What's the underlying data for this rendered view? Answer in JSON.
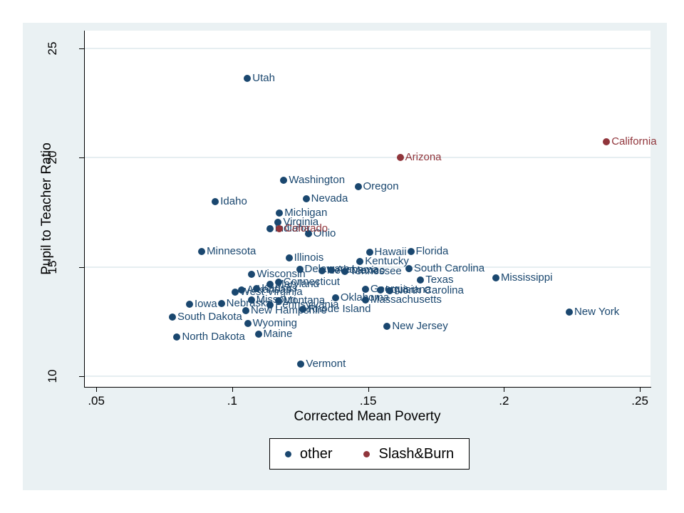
{
  "figure": {
    "canvas_color": "#eaf1f3",
    "plot_color": "#ffffff",
    "gridline_color": "#e6eef1",
    "axis_color": "#000000"
  },
  "chart_data": {
    "type": "scatter",
    "title": "",
    "xlabel": "Corrected Mean Poverty",
    "ylabel": "Pupil to Teacher Ratio",
    "xlim": [
      0.0455,
      0.2539
    ],
    "ylim": [
      9.51,
      25.82
    ],
    "grid": "horizontal",
    "xticks": [
      {
        "value": 0.05,
        "label": ".05"
      },
      {
        "value": 0.1,
        "label": ".1"
      },
      {
        "value": 0.15,
        "label": ".15"
      },
      {
        "value": 0.2,
        "label": ".2"
      },
      {
        "value": 0.25,
        "label": ".25"
      }
    ],
    "yticks": [
      {
        "value": 10,
        "label": "10"
      },
      {
        "value": 15,
        "label": "15"
      },
      {
        "value": 20,
        "label": "20"
      },
      {
        "value": 25,
        "label": "25"
      }
    ],
    "legend": {
      "position": "bottom-center",
      "items": [
        {
          "label": "other",
          "color": "#1a476f"
        },
        {
          "label": "Slash&Burn",
          "color": "#90353b"
        }
      ]
    },
    "series": [
      {
        "name": "other",
        "color": "#1a476f",
        "points": [
          {
            "label": "Utah",
            "x": 0.1056,
            "y": 23.62
          },
          {
            "label": "Washington",
            "x": 0.119,
            "y": 18.97
          },
          {
            "label": "Oregon",
            "x": 0.1463,
            "y": 18.68
          },
          {
            "label": "Nevada",
            "x": 0.1272,
            "y": 18.12
          },
          {
            "label": "Idaho",
            "x": 0.0938,
            "y": 17.99
          },
          {
            "label": "Michigan",
            "x": 0.1174,
            "y": 17.46
          },
          {
            "label": "Virginia",
            "x": 0.1169,
            "y": 17.04
          },
          {
            "label": "Indiana",
            "x": 0.1138,
            "y": 16.74
          },
          {
            "label": "Ohio",
            "x": 0.128,
            "y": 16.51
          },
          {
            "label": "Minnesota",
            "x": 0.0888,
            "y": 15.72
          },
          {
            "label": "Hawaii",
            "x": 0.1505,
            "y": 15.69
          },
          {
            "label": "Florida",
            "x": 0.1657,
            "y": 15.72
          },
          {
            "label": "Illinois",
            "x": 0.1209,
            "y": 15.43
          },
          {
            "label": "Kentucky",
            "x": 0.147,
            "y": 15.26
          },
          {
            "label": "South Carolina",
            "x": 0.165,
            "y": 14.92
          },
          {
            "label": "Delaware",
            "x": 0.1248,
            "y": 14.9
          },
          {
            "label": "New Mexico",
            "x": 0.133,
            "y": 14.82
          },
          {
            "label": "Alabama",
            "x": 0.1365,
            "y": 14.85
          },
          {
            "label": "Tennessee",
            "x": 0.1415,
            "y": 14.8
          },
          {
            "label": "Wisconsin",
            "x": 0.1072,
            "y": 14.67
          },
          {
            "label": "Texas",
            "x": 0.1693,
            "y": 14.4
          },
          {
            "label": "Connecticut",
            "x": 0.117,
            "y": 14.32
          },
          {
            "label": "Maryland",
            "x": 0.114,
            "y": 14.2
          },
          {
            "label": "Kansas",
            "x": 0.109,
            "y": 14.02
          },
          {
            "label": "Arkansas",
            "x": 0.1035,
            "y": 13.95
          },
          {
            "label": "Georgia",
            "x": 0.149,
            "y": 13.97
          },
          {
            "label": "Louisiana",
            "x": 0.1545,
            "y": 13.95
          },
          {
            "label": "North Carolina",
            "x": 0.158,
            "y": 13.9
          },
          {
            "label": "West Virginia",
            "x": 0.101,
            "y": 13.85
          },
          {
            "label": "Oklahoma",
            "x": 0.138,
            "y": 13.6
          },
          {
            "label": "Missouri",
            "x": 0.107,
            "y": 13.5
          },
          {
            "label": "Montana",
            "x": 0.117,
            "y": 13.45
          },
          {
            "label": "Massachusetts",
            "x": 0.149,
            "y": 13.5
          },
          {
            "label": "Nebraska",
            "x": 0.096,
            "y": 13.32
          },
          {
            "label": "Iowa",
            "x": 0.0843,
            "y": 13.3
          },
          {
            "label": "Pennsylvania",
            "x": 0.114,
            "y": 13.25
          },
          {
            "label": "New Hampshire",
            "x": 0.105,
            "y": 13.0
          },
          {
            "label": "Rhode Island",
            "x": 0.126,
            "y": 13.05
          },
          {
            "label": "South Dakota",
            "x": 0.078,
            "y": 12.72
          },
          {
            "label": "Wyoming",
            "x": 0.1057,
            "y": 12.4
          },
          {
            "label": "New Jersey",
            "x": 0.157,
            "y": 12.28
          },
          {
            "label": "Maine",
            "x": 0.1096,
            "y": 11.94
          },
          {
            "label": "North Dakota",
            "x": 0.0797,
            "y": 11.78
          },
          {
            "label": "Vermont",
            "x": 0.1253,
            "y": 10.56
          },
          {
            "label": "Mississippi",
            "x": 0.197,
            "y": 14.5
          },
          {
            "label": "New York",
            "x": 0.224,
            "y": 12.93
          }
        ]
      },
      {
        "name": "Slash&Burn",
        "color": "#90353b",
        "points": [
          {
            "label": "Colorado",
            "x": 0.1174,
            "y": 16.74
          },
          {
            "label": "Arizona",
            "x": 0.1618,
            "y": 20.0
          },
          {
            "label": "California",
            "x": 0.2377,
            "y": 20.72
          }
        ]
      }
    ]
  }
}
